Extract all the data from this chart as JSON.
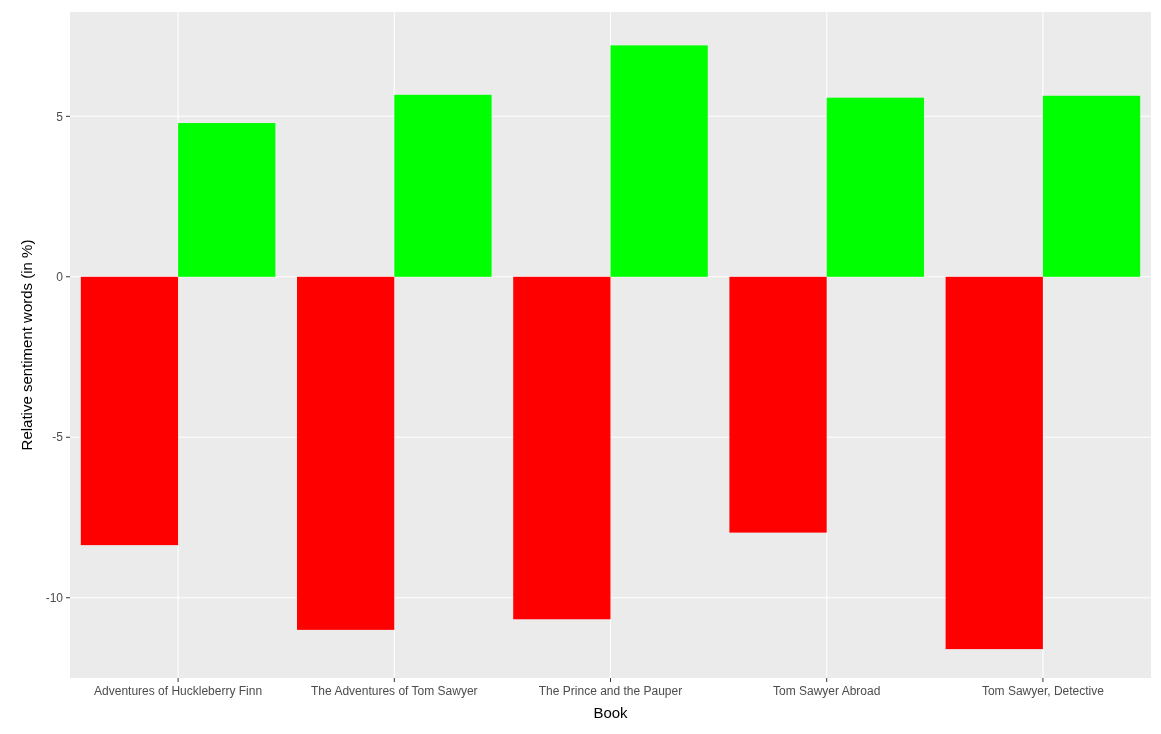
{
  "chart_data": {
    "type": "bar",
    "xlabel": "Book",
    "ylabel": "Relative sentiment words (in %)",
    "categories": [
      "Adventures of Huckleberry Finn",
      "The Adventures of Tom Sawyer",
      "The Prince and the Pauper",
      "Tom Sawyer Abroad",
      "Tom Sawyer, Detective"
    ],
    "series": [
      {
        "color": "#ff0000",
        "values": [
          -8.36,
          -11.0,
          -10.67,
          -7.97,
          -11.6
        ]
      },
      {
        "color": "#00ff00",
        "values": [
          4.79,
          5.67,
          7.21,
          5.58,
          5.64
        ]
      }
    ],
    "ylim": [
      -12.5,
      8.25
    ],
    "yticks": [
      -10,
      -5,
      0,
      5
    ],
    "grid": true
  }
}
